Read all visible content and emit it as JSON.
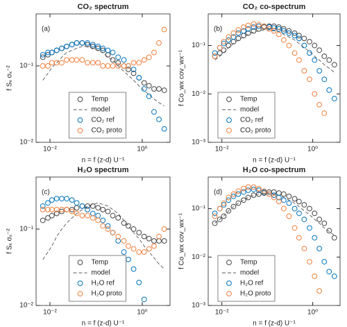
{
  "chart_data": [
    {
      "type": "scatter",
      "title": "CO₂ spectrum",
      "panel_label": "(a)",
      "xlabel": "n = f (z-d) U⁻¹",
      "ylabel": "f Sₓ σₓ⁻²",
      "log_x": true,
      "log_y": true,
      "legend": "lower center",
      "xlim": [
        0.005,
        4
      ],
      "ylim": [
        0.01,
        0.48
      ],
      "xticks": [
        {
          "value": 0.01,
          "label": "10⁻²"
        },
        {
          "value": 1,
          "label": "10⁰"
        }
      ],
      "yticks": [
        {
          "value": 0.01,
          "label": "10⁻²"
        },
        {
          "value": 0.1,
          "label": "10⁻¹"
        }
      ],
      "x": [
        0.007,
        0.009,
        0.011,
        0.014,
        0.018,
        0.023,
        0.03,
        0.038,
        0.05,
        0.065,
        0.085,
        0.11,
        0.14,
        0.18,
        0.23,
        0.3,
        0.4,
        0.5,
        0.65,
        0.85,
        1.1,
        1.4,
        1.8,
        2.3,
        3.0
      ],
      "series": [
        {
          "name": "Temp",
          "color": "#444444",
          "marker": "circle",
          "values": [
            0.13,
            0.14,
            0.15,
            0.16,
            0.17,
            0.18,
            0.19,
            0.2,
            0.2,
            0.19,
            0.18,
            0.17,
            0.16,
            0.14,
            0.12,
            0.11,
            0.1,
            0.09,
            0.08,
            0.07,
            0.06,
            0.055,
            0.05,
            0.05,
            0.048
          ]
        },
        {
          "name": "model",
          "color": "#555555",
          "marker": "none",
          "line": "dashed",
          "values": [
            0.065,
            0.08,
            0.095,
            0.11,
            0.13,
            0.15,
            0.16,
            0.17,
            0.18,
            0.18,
            0.17,
            0.16,
            0.15,
            0.13,
            0.12,
            0.1,
            0.085,
            0.075,
            0.065,
            0.055,
            0.048,
            0.042,
            0.037,
            0.033,
            0.03
          ]
        },
        {
          "name": "CO₂ ref",
          "color": "#0072BD",
          "marker": "circle",
          "values": [
            0.14,
            0.15,
            0.15,
            0.16,
            0.17,
            0.18,
            0.19,
            0.2,
            0.2,
            0.2,
            0.19,
            0.18,
            0.17,
            0.16,
            0.15,
            0.13,
            0.12,
            0.1,
            0.09,
            0.07,
            0.05,
            0.04,
            0.025,
            0.02,
            0.015
          ]
        },
        {
          "name": "CO₂ proto",
          "color": "#F07F3C",
          "marker": "circle",
          "values": [
            0.1,
            0.1,
            0.11,
            0.11,
            0.11,
            0.12,
            0.12,
            0.12,
            0.12,
            0.11,
            0.11,
            0.11,
            0.1,
            0.1,
            0.1,
            0.1,
            0.1,
            0.1,
            0.11,
            0.11,
            0.12,
            0.13,
            0.15,
            0.2,
            0.3
          ]
        }
      ]
    },
    {
      "type": "scatter",
      "title": "CO₂ co-spectrum",
      "panel_label": "(b)",
      "xlabel": "n = f (z-d) U⁻¹",
      "ylabel": "f Co_wx cov_wx⁻¹",
      "log_x": true,
      "log_y": true,
      "legend": "lower left",
      "xlim": [
        0.005,
        4
      ],
      "ylim": [
        0.001,
        0.45
      ],
      "xticks": [
        {
          "value": 0.01,
          "label": "10⁻²"
        },
        {
          "value": 1,
          "label": "10⁰"
        }
      ],
      "yticks": [
        {
          "value": 0.001,
          "label": "10⁻³"
        },
        {
          "value": 0.01,
          "label": "10⁻²"
        },
        {
          "value": 0.1,
          "label": "10⁻¹"
        }
      ],
      "x": [
        0.007,
        0.009,
        0.011,
        0.014,
        0.018,
        0.023,
        0.03,
        0.038,
        0.05,
        0.065,
        0.085,
        0.11,
        0.14,
        0.18,
        0.23,
        0.3,
        0.4,
        0.5,
        0.65,
        0.85,
        1.1,
        1.4,
        1.8,
        2.3,
        3.0
      ],
      "series": [
        {
          "name": "Temp",
          "color": "#444444",
          "marker": "circle",
          "values": [
            0.06,
            0.07,
            0.08,
            0.1,
            0.12,
            0.14,
            0.16,
            0.18,
            0.2,
            0.22,
            0.24,
            0.25,
            0.25,
            0.24,
            0.22,
            0.2,
            0.18,
            0.16,
            0.14,
            0.12,
            0.1,
            0.08,
            0.06,
            0.05,
            0.04
          ]
        },
        {
          "name": "model",
          "color": "#555555",
          "marker": "none",
          "line": "dashed",
          "values": [
            0.05,
            0.06,
            0.07,
            0.09,
            0.11,
            0.13,
            0.15,
            0.17,
            0.19,
            0.2,
            0.21,
            0.21,
            0.2,
            0.19,
            0.17,
            0.15,
            0.13,
            0.11,
            0.09,
            0.075,
            0.06,
            0.05,
            0.04,
            0.034,
            0.028
          ]
        },
        {
          "name": "CO₂ ref",
          "color": "#0072BD",
          "marker": "circle",
          "values": [
            0.07,
            0.09,
            0.11,
            0.13,
            0.15,
            0.18,
            0.2,
            0.22,
            0.24,
            0.25,
            0.25,
            0.24,
            0.23,
            0.22,
            0.2,
            0.18,
            0.16,
            0.14,
            0.1,
            0.07,
            0.05,
            0.03,
            0.02,
            0.012,
            0.008
          ]
        },
        {
          "name": "CO₂ proto",
          "color": "#F07F3C",
          "marker": "circle",
          "values": [
            0.06,
            0.09,
            0.12,
            0.15,
            0.18,
            0.21,
            0.24,
            0.26,
            0.28,
            0.27,
            0.25,
            0.22,
            0.2,
            0.17,
            0.13,
            0.1,
            0.07,
            0.05,
            0.03,
            0.02,
            0.01,
            0.006,
            0.004,
            null,
            null
          ]
        }
      ]
    },
    {
      "type": "scatter",
      "title": "H₂O spectrum",
      "panel_label": "(c)",
      "xlabel": "n = f (z-d) U⁻¹",
      "ylabel": "f Sₓ σₓ⁻²",
      "log_x": true,
      "log_y": true,
      "legend": "lower center",
      "xlim": [
        0.005,
        4
      ],
      "ylim": [
        0.01,
        0.48
      ],
      "xticks": [
        {
          "value": 0.01,
          "label": "10⁻²"
        },
        {
          "value": 1,
          "label": "10⁰"
        }
      ],
      "yticks": [
        {
          "value": 0.01,
          "label": "10⁻²"
        },
        {
          "value": 0.1,
          "label": "10⁻¹"
        }
      ],
      "x": [
        0.007,
        0.009,
        0.011,
        0.014,
        0.018,
        0.023,
        0.03,
        0.038,
        0.05,
        0.065,
        0.085,
        0.11,
        0.14,
        0.18,
        0.23,
        0.3,
        0.4,
        0.5,
        0.65,
        0.85,
        1.1,
        1.4,
        1.8,
        2.3,
        3.0
      ],
      "series": [
        {
          "name": "Temp",
          "color": "#444444",
          "marker": "circle",
          "values": [
            0.13,
            0.14,
            0.15,
            0.16,
            0.17,
            0.18,
            0.18,
            0.19,
            0.2,
            0.2,
            0.2,
            0.19,
            0.18,
            0.17,
            0.15,
            0.14,
            0.12,
            0.11,
            0.1,
            0.09,
            0.08,
            0.075,
            0.07,
            0.07,
            0.07
          ]
        },
        {
          "name": "model",
          "color": "#555555",
          "marker": "none",
          "line": "dashed",
          "values": [
            0.04,
            0.05,
            0.06,
            0.08,
            0.1,
            0.12,
            0.14,
            0.16,
            0.18,
            0.2,
            0.21,
            0.22,
            0.21,
            0.2,
            0.18,
            0.16,
            0.13,
            0.11,
            0.09,
            0.075,
            0.06,
            0.05,
            0.042,
            0.035,
            0.03
          ]
        },
        {
          "name": "H₂O ref",
          "color": "#0072BD",
          "marker": "circle",
          "values": [
            0.2,
            0.22,
            0.24,
            0.25,
            0.25,
            0.25,
            0.24,
            0.22,
            0.2,
            0.18,
            0.16,
            0.15,
            0.13,
            0.11,
            0.09,
            0.07,
            0.05,
            0.04,
            0.03,
            0.02,
            0.012,
            null,
            null,
            null,
            null
          ]
        },
        {
          "name": "H₂O proto",
          "color": "#F07F3C",
          "marker": "circle",
          "values": [
            0.18,
            0.18,
            0.18,
            0.18,
            0.18,
            0.18,
            0.17,
            0.16,
            0.15,
            0.15,
            0.14,
            0.13,
            0.11,
            0.1,
            0.09,
            0.08,
            0.07,
            0.06,
            0.055,
            0.05,
            0.05,
            0.055,
            0.06,
            0.08,
            0.1
          ]
        }
      ]
    },
    {
      "type": "scatter",
      "title": "H₂O co-spectrum",
      "panel_label": "(d)",
      "xlabel": "n = f (z-d) U⁻¹",
      "ylabel": "f Co_wx cov_wx⁻¹",
      "log_x": true,
      "log_y": true,
      "legend": "lower left",
      "xlim": [
        0.005,
        4
      ],
      "ylim": [
        0.001,
        0.45
      ],
      "xticks": [
        {
          "value": 0.01,
          "label": "10⁻²"
        },
        {
          "value": 1,
          "label": "10⁰"
        }
      ],
      "yticks": [
        {
          "value": 0.001,
          "label": "10⁻³"
        },
        {
          "value": 0.01,
          "label": "10⁻²"
        },
        {
          "value": 0.1,
          "label": "10⁻¹"
        }
      ],
      "x": [
        0.007,
        0.009,
        0.011,
        0.014,
        0.018,
        0.023,
        0.03,
        0.038,
        0.05,
        0.065,
        0.085,
        0.11,
        0.14,
        0.18,
        0.23,
        0.3,
        0.4,
        0.5,
        0.65,
        0.85,
        1.1,
        1.4,
        1.8,
        2.3,
        3.0
      ],
      "series": [
        {
          "name": "Temp",
          "color": "#444444",
          "marker": "circle",
          "values": [
            0.05,
            0.06,
            0.07,
            0.09,
            0.11,
            0.13,
            0.15,
            0.17,
            0.19,
            0.2,
            0.21,
            0.22,
            0.22,
            0.21,
            0.2,
            0.18,
            0.16,
            0.14,
            0.12,
            0.1,
            0.08,
            0.06,
            0.05,
            0.035,
            0.025
          ]
        },
        {
          "name": "model",
          "color": "#555555",
          "marker": "none",
          "line": "dashed",
          "values": [
            0.05,
            0.06,
            0.07,
            0.09,
            0.11,
            0.13,
            0.15,
            0.17,
            0.19,
            0.2,
            0.21,
            0.21,
            0.2,
            0.19,
            0.17,
            0.15,
            0.13,
            0.11,
            0.09,
            0.075,
            0.06,
            0.05,
            0.04,
            0.034,
            0.028
          ]
        },
        {
          "name": "H₂O ref",
          "color": "#0072BD",
          "marker": "circle",
          "values": [
            0.08,
            0.1,
            0.12,
            0.15,
            0.18,
            0.2,
            0.22,
            0.24,
            0.25,
            0.24,
            0.22,
            0.2,
            0.19,
            0.17,
            0.15,
            0.13,
            0.1,
            0.08,
            0.06,
            0.04,
            0.025,
            0.015,
            0.008,
            0.005,
            0.004
          ]
        },
        {
          "name": "H₂O proto",
          "color": "#F07F3C",
          "marker": "circle",
          "values": [
            0.07,
            0.1,
            0.13,
            0.17,
            0.2,
            0.23,
            0.26,
            0.28,
            0.28,
            0.26,
            0.23,
            0.2,
            0.17,
            0.14,
            0.1,
            0.07,
            0.04,
            0.025,
            0.015,
            0.008,
            0.004,
            0.002,
            null,
            null,
            null
          ]
        }
      ]
    }
  ]
}
